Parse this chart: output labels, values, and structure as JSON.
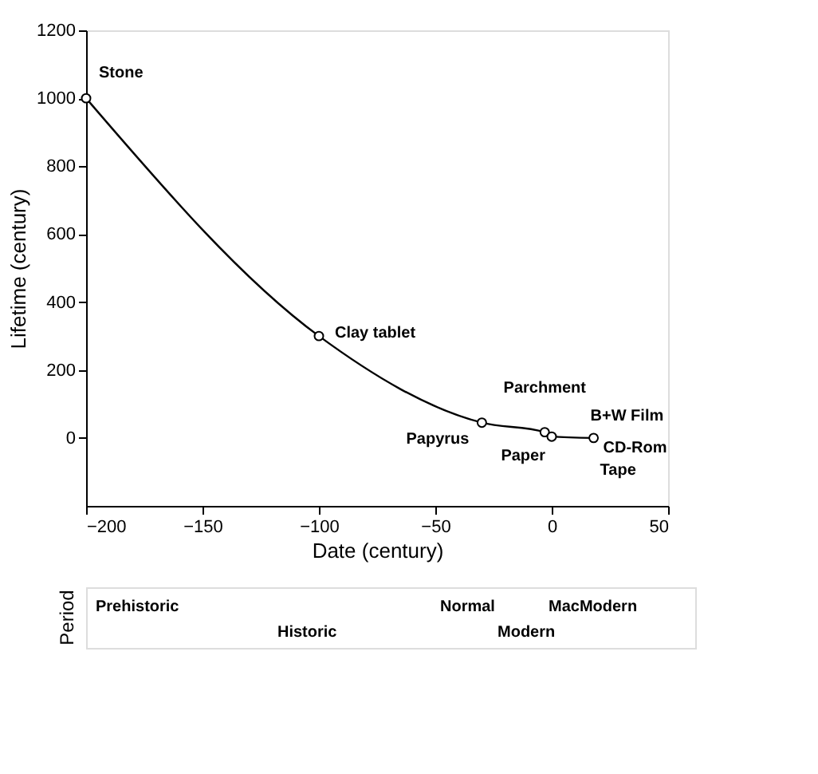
{
  "chart_data": [
    {
      "type": "scatter",
      "xlabel": "Date (century)",
      "ylabel": "Lifetime (century)",
      "x": [
        -200,
        -100,
        -30,
        -3,
        0,
        18
      ],
      "series": [
        {
          "type": "line",
          "marker": "none",
          "color": "#000000",
          "x": [
            -200,
            -100,
            -30,
            -3,
            0,
            18
          ],
          "values": [
            1000,
            300,
            45,
            17,
            4,
            0
          ]
        },
        {
          "color": "#000000",
          "values": [
            1000,
            300,
            45,
            17,
            4,
            0
          ]
        }
      ],
      "marker": "circle",
      "xlim": [
        -200,
        50
      ],
      "xticks": [
        -200,
        -150,
        -100,
        -50,
        0,
        50
      ],
      "ylim": [
        -200,
        1200
      ],
      "yticks": [
        0,
        200,
        400,
        600,
        800,
        1000,
        1200
      ],
      "annotations": [
        {
          "text": "Stone",
          "x": -200,
          "y": 1000
        },
        {
          "text": "Clay tablet",
          "x": -100,
          "y": 300
        },
        {
          "text": "Papyrus",
          "x": -30,
          "y": 45
        },
        {
          "text": "Parchment",
          "x": -3,
          "y": 17
        },
        {
          "text": "Paper",
          "x": 0,
          "y": 4
        },
        {
          "text": "B+W Film",
          "x": 18,
          "y": 0
        },
        {
          "text": "CD-Rom",
          "x": 18,
          "y": 0
        },
        {
          "text": "Tape",
          "x": 18,
          "y": 0
        }
      ]
    },
    {
      "type": "other",
      "ylabel": "Period",
      "annotations": [
        "Prehistoric",
        "Historic",
        "Normal",
        "Modern",
        "MacModern"
      ]
    }
  ]
}
